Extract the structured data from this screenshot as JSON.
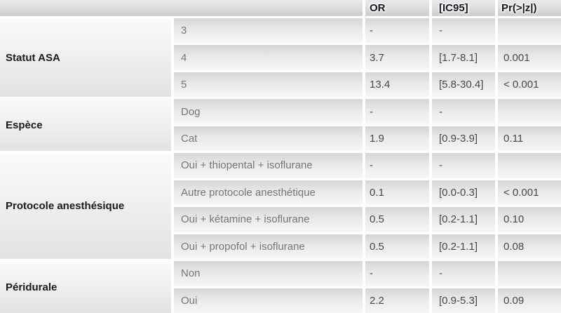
{
  "table": {
    "headers": {
      "blank": "",
      "or": "OR",
      "ic95": "[IC95]",
      "pr": "Pr(>|z|)"
    },
    "sections": [
      {
        "label": "Statut ASA",
        "rows": [
          {
            "label": "3",
            "or": "-",
            "ic95": "-",
            "pr": ""
          },
          {
            "label": "4",
            "or": "3.7",
            "ic95": "[1.7-8.1]",
            "pr": "0.001"
          },
          {
            "label": "5",
            "or": "13.4",
            "ic95": "[5.8-30.4]",
            "pr": "< 0.001"
          }
        ]
      },
      {
        "label": "Espèce",
        "rows": [
          {
            "label": "Dog",
            "or": "-",
            "ic95": "-",
            "pr": ""
          },
          {
            "label": "Cat",
            "or": "1.9",
            "ic95": "[0.9-3.9]",
            "pr": "0.11"
          }
        ]
      },
      {
        "label": "Protocole anesthésique",
        "rows": [
          {
            "label": "Oui + thiopental + isoflurane",
            "or": "-",
            "ic95": "-",
            "pr": ""
          },
          {
            "label": "Autre protocole anesthétique",
            "or": "0.1",
            "ic95": "[0.0-0.3]",
            "pr": "< 0.001"
          },
          {
            "label": "Oui + kétamine + isoflurane",
            "or": "0.5",
            "ic95": "[0.2-1.1]",
            "pr": "0.10"
          },
          {
            "label": "Oui + propofol + isoflurane",
            "or": "0.5",
            "ic95": "[0.2-1.1]",
            "pr": "0.08"
          }
        ]
      },
      {
        "label": "Péridurale",
        "rows": [
          {
            "label": "Non",
            "or": "-",
            "ic95": "-",
            "pr": ""
          },
          {
            "label": "Oui",
            "or": "2.2",
            "ic95": "[0.9-5.3]",
            "pr": "0.09"
          }
        ]
      }
    ]
  },
  "colors": {
    "header_text": "#15151f",
    "category_text": "#1a1a1a",
    "subcategory_text": "#767676",
    "value_text": "#474747",
    "cell_gradient_top": "#d5d5d5",
    "cell_gradient_bottom": "#f6f6f6",
    "category_gradient_top": "#fafafa",
    "category_gradient_bottom": "#e2e2e2",
    "gap_color": "#ffffff"
  }
}
